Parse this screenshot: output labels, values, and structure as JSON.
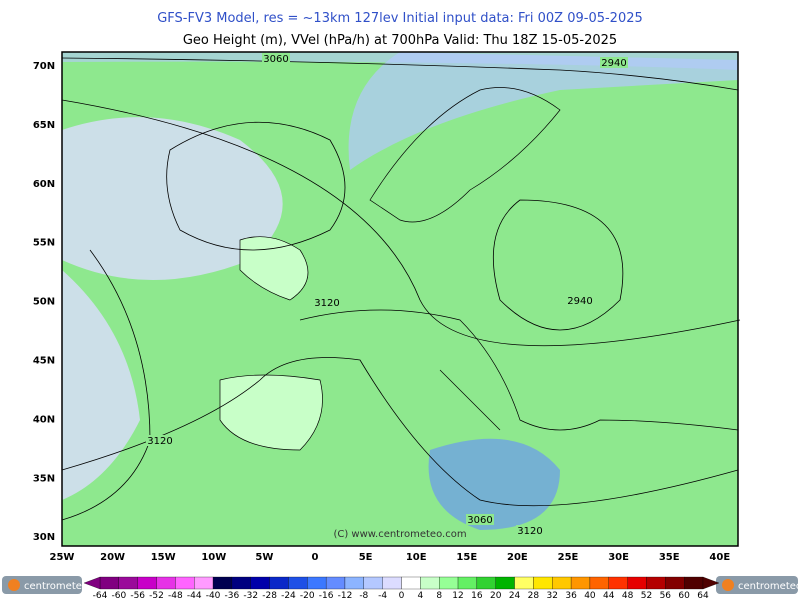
{
  "header": {
    "line1": "GFS-FV3 Model, res = ~13km 127lev    Initial input data: Fri 00Z 09-05-2025",
    "line2": "Geo Height (m), VVel (hPa/h) at 700hPa  Valid: Thu 18Z 15-05-2025"
  },
  "map": {
    "lat_labels": [
      "70N",
      "65N",
      "60N",
      "55N",
      "50N",
      "45N",
      "40N",
      "35N",
      "30N"
    ],
    "lon_labels": [
      "25W",
      "20W",
      "15W",
      "10W",
      "5W",
      "0",
      "5E",
      "10E",
      "15E",
      "20E",
      "25E",
      "30E",
      "35E",
      "40E"
    ],
    "contour_labels": [
      "3060",
      "2940",
      "3120",
      "2940",
      "3120",
      "3060",
      "3120"
    ],
    "credit": "(C) www.centrometeo.com"
  },
  "colorbar": {
    "labels": [
      -64,
      -60,
      -56,
      -52,
      -48,
      -44,
      -40,
      -36,
      -32,
      -28,
      -24,
      -20,
      -16,
      -12,
      -8,
      -4,
      0,
      4,
      8,
      12,
      16,
      20,
      24,
      28,
      32,
      36,
      40,
      44,
      48,
      52,
      56,
      60,
      64
    ],
    "colors": [
      "#800080",
      "#9a0a9a",
      "#c800c8",
      "#e632e6",
      "#ff64ff",
      "#ff9bff",
      "#000050",
      "#000080",
      "#0000aa",
      "#0a28c8",
      "#1e50e6",
      "#3c78ff",
      "#648cff",
      "#8cb4ff",
      "#b4c8ff",
      "#dcdcff",
      "#ffffff",
      "#c8ffc8",
      "#96ff96",
      "#64f064",
      "#32d232",
      "#00b400",
      "#ffff64",
      "#ffe600",
      "#ffc800",
      "#ff9600",
      "#ff6400",
      "#ff3200",
      "#e60000",
      "#b40000",
      "#820000",
      "#500000"
    ]
  },
  "logos": {
    "left": "centrometeo",
    "right": "centrometeo"
  }
}
